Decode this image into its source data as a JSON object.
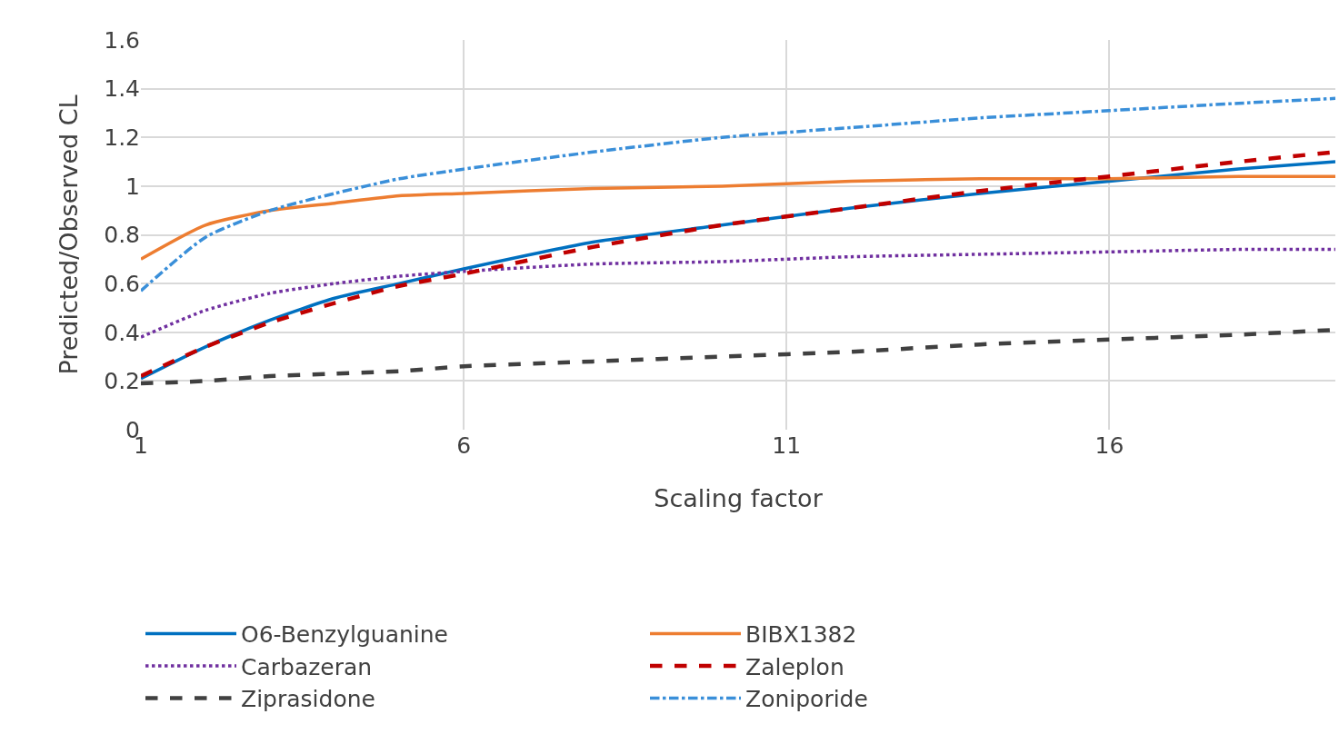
{
  "chart_data": {
    "type": "line",
    "xlabel": "Scaling factor",
    "ylabel": "Predicted/Observed CL",
    "x": [
      1,
      2,
      3,
      4,
      5,
      6,
      8,
      10,
      12,
      14,
      16,
      18,
      19.5
    ],
    "xlim": [
      1,
      19.5
    ],
    "xticks": [
      1,
      6,
      11,
      16
    ],
    "ylim": [
      0,
      1.6
    ],
    "yticks": [
      0,
      0.2,
      0.4,
      0.6,
      0.8,
      1,
      1.2,
      1.4,
      1.6
    ],
    "grid": true,
    "legend": "bottom",
    "marker": "none",
    "series": [
      {
        "name": "O6-Benzylguanine",
        "color": "#0070c0",
        "line_style": "solid",
        "values": [
          0.21,
          0.34,
          0.45,
          0.54,
          0.6,
          0.66,
          0.77,
          0.84,
          0.91,
          0.97,
          1.02,
          1.07,
          1.1
        ]
      },
      {
        "name": "BIBX1382",
        "color": "#ed7d31",
        "line_style": "solid",
        "values": [
          0.7,
          0.84,
          0.9,
          0.93,
          0.96,
          0.97,
          0.99,
          1.0,
          1.02,
          1.03,
          1.03,
          1.04,
          1.04
        ]
      },
      {
        "name": "Carbazeran",
        "color": "#7030a0",
        "line_style": "dotted",
        "values": [
          0.38,
          0.49,
          0.56,
          0.6,
          0.63,
          0.65,
          0.68,
          0.69,
          0.71,
          0.72,
          0.73,
          0.74,
          0.74
        ]
      },
      {
        "name": "Zaleplon",
        "color": "#c00000",
        "line_style": "dashed",
        "values": [
          0.22,
          0.34,
          0.44,
          0.52,
          0.59,
          0.64,
          0.75,
          0.84,
          0.91,
          0.98,
          1.04,
          1.1,
          1.14
        ]
      },
      {
        "name": "Ziprasidone",
        "color": "#404040",
        "line_style": "dashed",
        "values": [
          0.19,
          0.2,
          0.22,
          0.23,
          0.24,
          0.26,
          0.28,
          0.3,
          0.32,
          0.35,
          0.37,
          0.39,
          0.41
        ]
      },
      {
        "name": "Zoniporide",
        "color": "#3a8fd9",
        "line_style": "dashdot",
        "values": [
          0.57,
          0.79,
          0.9,
          0.97,
          1.03,
          1.07,
          1.14,
          1.2,
          1.24,
          1.28,
          1.31,
          1.34,
          1.36
        ]
      }
    ]
  }
}
